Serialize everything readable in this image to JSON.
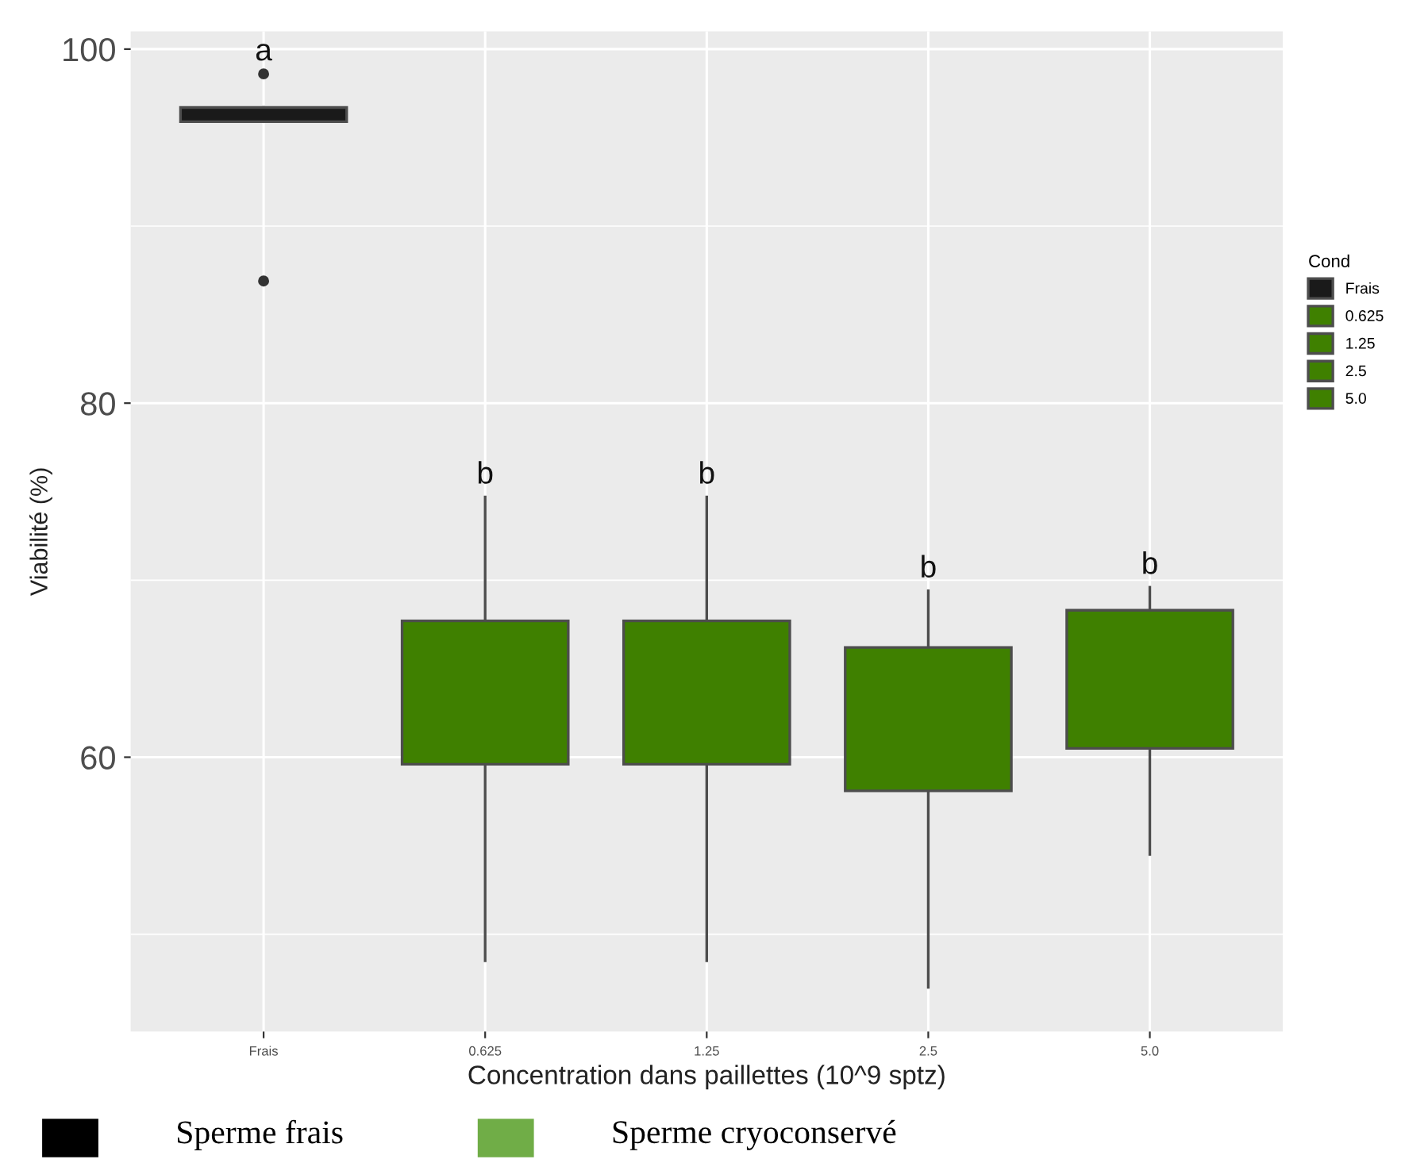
{
  "chart_data": {
    "type": "box",
    "xlabel": "Concentration dans paillettes (10^9 sptz)",
    "ylabel": "Viabilité (%)",
    "legend_title": "Cond",
    "categories": [
      "Frais",
      "0.625",
      "1.25",
      "2.5",
      "5.0"
    ],
    "series": [
      {
        "name": "Frais",
        "color": "#1a1a1a",
        "boxes": [
          {
            "low": 95.9,
            "q1": 95.9,
            "median": 96.3,
            "q3": 96.7,
            "high": 96.7,
            "outliers": [
              98.6,
              86.9
            ]
          },
          null,
          null,
          null,
          null
        ]
      },
      {
        "name": "0.625",
        "color": "#3f8000",
        "boxes": [
          null,
          {
            "low": 48.5,
            "q1": 59.6,
            "median": 65.4,
            "q3": 67.7,
            "high": 74.7
          },
          null,
          null,
          null
        ]
      },
      {
        "name": "1.25",
        "color": "#3f8000",
        "boxes": [
          null,
          null,
          {
            "low": 48.5,
            "q1": 59.6,
            "median": 65.4,
            "q3": 67.7,
            "high": 74.7
          },
          null,
          null
        ]
      },
      {
        "name": "2.5",
        "color": "#3f8000",
        "boxes": [
          null,
          null,
          null,
          {
            "low": 47.0,
            "q1": 58.1,
            "median": 65.3,
            "q3": 66.2,
            "high": 69.4
          },
          null
        ]
      },
      {
        "name": "5.0",
        "color": "#3f8000",
        "boxes": [
          null,
          null,
          null,
          null,
          {
            "low": 54.5,
            "q1": 60.5,
            "median": 67.5,
            "q3": 68.3,
            "high": 69.6
          }
        ]
      }
    ],
    "ylim": [
      44.5,
      101
    ],
    "yticks": [
      60,
      80,
      100
    ],
    "grid": true,
    "legend": "right",
    "annotations": [
      "a",
      "b",
      "b",
      "b",
      "b",
      "Sperme frais",
      "Sperme cryoconservé"
    ]
  }
}
